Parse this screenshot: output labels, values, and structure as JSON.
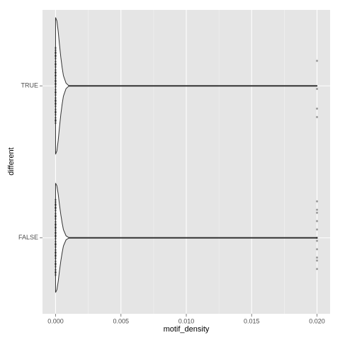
{
  "chart_data": {
    "type": "violin",
    "x_label": "motif_density",
    "y_label": "different",
    "categories": [
      "TRUE",
      "FALSE"
    ],
    "violins": [
      {
        "x": [
          0,
          0.0001,
          0.0002,
          0.0003,
          0.0004,
          0.0005,
          0.0006,
          0.0008,
          0.001,
          0.02
        ],
        "density": [
          1,
          0.95,
          0.8,
          0.6,
          0.42,
          0.27,
          0.15,
          0.04,
          0.005,
          0.005
        ]
      },
      {
        "x": [
          0,
          0.0001,
          0.0002,
          0.0003,
          0.0004,
          0.0005,
          0.0006,
          0.0008,
          0.001,
          0.02
        ],
        "density": [
          0.8,
          0.76,
          0.64,
          0.48,
          0.34,
          0.22,
          0.12,
          0.03,
          0.005,
          0.005
        ]
      }
    ],
    "points": [
      [
        0,
        0,
        0,
        0,
        0,
        0,
        0,
        0,
        0,
        0,
        0,
        0,
        0,
        0,
        0,
        0,
        0,
        0,
        0,
        0,
        0,
        0,
        0,
        0,
        0,
        0,
        0,
        0,
        0,
        0,
        0,
        0,
        0,
        0,
        0,
        0,
        0,
        0,
        0,
        0,
        0.02,
        0.02,
        0.02,
        0.02
      ],
      [
        0,
        0,
        0,
        0,
        0,
        0,
        0,
        0,
        0,
        0,
        0,
        0,
        0,
        0,
        0,
        0,
        0,
        0,
        0,
        0,
        0,
        0,
        0,
        0,
        0,
        0,
        0,
        0,
        0,
        0,
        0,
        0,
        0,
        0,
        0,
        0,
        0,
        0,
        0,
        0,
        0.02,
        0.02,
        0.02,
        0.02,
        0.02,
        0.02,
        0.02,
        0.02,
        0.02,
        0.02,
        0.02
      ]
    ],
    "xlim": [
      -0.001,
      0.021
    ],
    "xticks": [
      {
        "value": 0,
        "label": "0.000"
      },
      {
        "value": 0.005,
        "label": "0.005"
      },
      {
        "value": 0.01,
        "label": "0.010"
      },
      {
        "value": 0.015,
        "label": "0.015"
      },
      {
        "value": 0.02,
        "label": "0.020"
      }
    ],
    "grid": true
  }
}
